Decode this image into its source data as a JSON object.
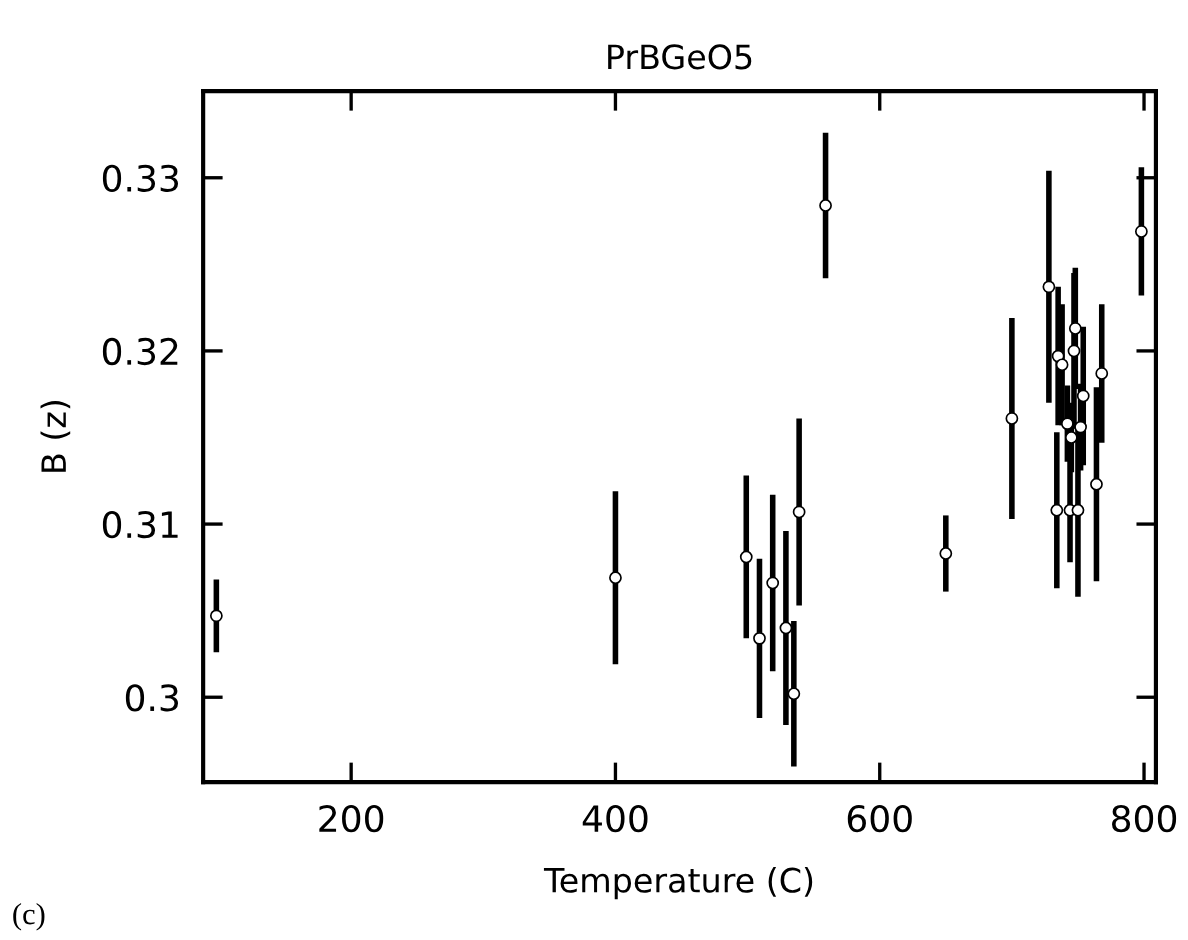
{
  "chart_data": {
    "type": "scatter",
    "title": "PrBGeO5",
    "xlabel": "Temperature (C)",
    "ylabel": "B (z)",
    "x": [
      98,
      400,
      499,
      509,
      519,
      529,
      535,
      539,
      559,
      650,
      700,
      728,
      734,
      735,
      738,
      744,
      750,
      747,
      748,
      754,
      764,
      768,
      798,
      742,
      745,
      752
    ],
    "series": [
      {
        "color": "#000000",
        "values": [
          0.3047,
          0.3069,
          0.3081,
          0.3034,
          0.3066,
          0.304,
          0.3002,
          0.3107,
          0.3284,
          0.3083,
          0.3161,
          0.3237,
          0.3108,
          0.3197,
          0.3192,
          0.3108,
          0.3108,
          0.32,
          0.3213,
          0.3174,
          0.3123,
          0.3187,
          0.3269,
          0.3158,
          0.315,
          0.3156
        ],
        "errors": [
          0.0021,
          0.005,
          0.0047,
          0.0046,
          0.0051,
          0.0056,
          0.0042,
          0.0054,
          0.0042,
          0.0022,
          0.0058,
          0.0067,
          0.0045,
          0.004,
          0.0035,
          0.003,
          0.005,
          0.0045,
          0.0035,
          0.004,
          0.0056,
          0.004,
          0.0037,
          0.0022,
          0.002,
          0.0025
        ]
      }
    ],
    "xlim": [
      88,
      809
    ],
    "ylim": [
      0.2951,
      0.335
    ],
    "xticks": [
      200,
      400,
      600,
      800
    ],
    "yticks": [
      0.3,
      0.31,
      0.32,
      0.33
    ],
    "marker": "circle",
    "grid": false,
    "legend": false,
    "annotations": [
      "(c)"
    ]
  }
}
